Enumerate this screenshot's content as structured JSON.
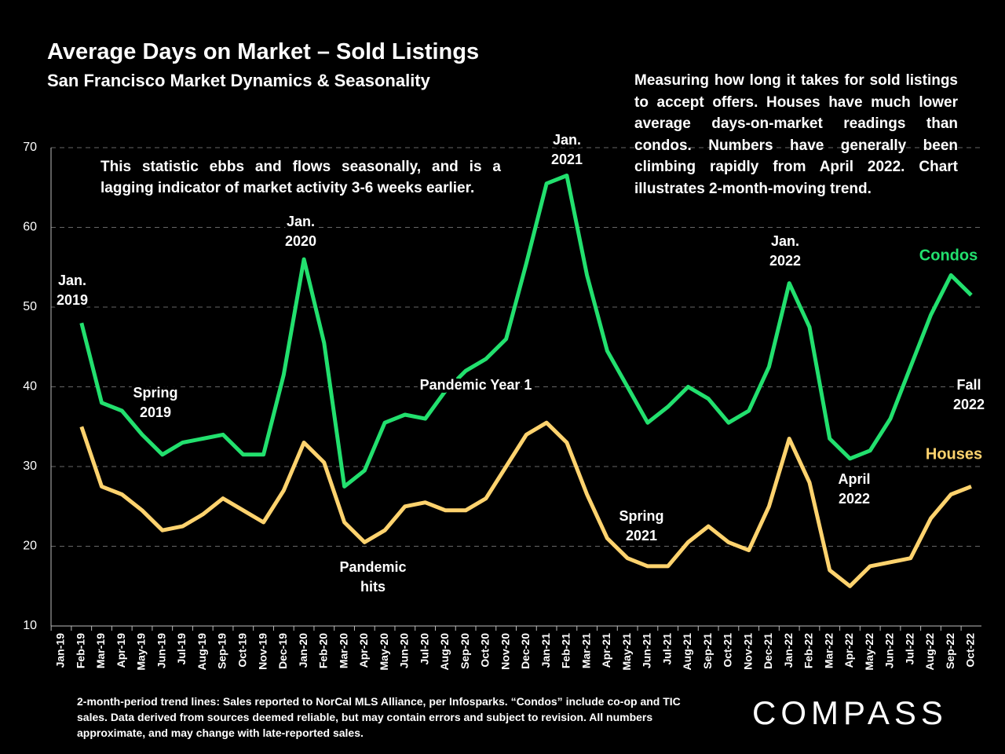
{
  "chart_data": {
    "type": "line",
    "title": "Average Days on Market – Sold Listings",
    "subtitle": "San Francisco Market Dynamics & Seasonality",
    "description": "Measuring how long it takes for sold listings to accept offers. Houses have much lower average days-on-market readings than condos. Numbers have generally been climbing rapidly from April 2022. Chart illustrates 2-month-moving trend.",
    "note": "This statistic ebbs and flows seasonally, and is a lagging indicator of market activity 3-6 weeks earlier.",
    "footnote": "2-month-period trend lines: Sales reported to NorCal MLS Alliance, per Infosparks. “Condos” include co-op and TIC sales. Data derived from sources deemed reliable, but may contain errors and subject to revision. All numbers approximate, and may change with late-reported sales.",
    "logo": "COMPASS",
    "categories": [
      "Jan-19",
      "Feb-19",
      "Mar-19",
      "Apr-19",
      "May-19",
      "Jun-19",
      "Jul-19",
      "Aug-19",
      "Sep-19",
      "Oct-19",
      "Nov-19",
      "Dec-19",
      "Jan-20",
      "Feb-20",
      "Mar-20",
      "Apr-20",
      "May-20",
      "Jun-20",
      "Jul-20",
      "Aug-20",
      "Sep-20",
      "Oct-20",
      "Nov-20",
      "Dec-20",
      "Jan-21",
      "Feb-21",
      "Mar-21",
      "Apr-21",
      "May-21",
      "Jun-21",
      "Jul-21",
      "Aug-21",
      "Sep-21",
      "Oct-21",
      "Nov-21",
      "Dec-21",
      "Jan-22",
      "Feb-22",
      "Mar-22",
      "Apr-22",
      "May-22",
      "Jun-22",
      "Jul-22",
      "Aug-22",
      "Sep-22",
      "Oct-22"
    ],
    "series": [
      {
        "name": "Condos",
        "color": "#22e06e",
        "values": [
          null,
          48,
          38,
          37,
          34,
          31.5,
          33,
          33.5,
          34,
          31.5,
          31.5,
          41.5,
          56,
          45.5,
          27.5,
          29.5,
          35.5,
          36.5,
          36,
          39.5,
          42,
          43.5,
          46,
          55.5,
          65.5,
          66.5,
          54,
          44.5,
          40,
          35.5,
          37.5,
          40,
          38.5,
          35.5,
          37,
          42.5,
          53,
          47.5,
          33.5,
          31,
          32,
          36,
          42.5,
          49,
          54,
          51.5
        ]
      },
      {
        "name": "Houses",
        "color": "#ffd36e",
        "values": [
          null,
          35,
          27.5,
          26.5,
          24.5,
          22,
          22.5,
          24,
          26,
          24.5,
          23,
          27,
          33,
          30.5,
          23,
          20.5,
          22,
          25,
          25.5,
          24.5,
          24.5,
          26,
          30,
          34,
          35.5,
          33,
          26.5,
          21,
          18.5,
          17.5,
          17.5,
          20.5,
          22.5,
          20.5,
          19.5,
          25,
          33.5,
          28,
          17,
          15,
          17.5,
          18,
          18.5,
          23.5,
          26.5,
          27.5
        ]
      }
    ],
    "annotations": [
      {
        "lines": [
          "Jan.",
          "2019"
        ]
      },
      {
        "lines": [
          "Spring",
          "2019"
        ]
      },
      {
        "lines": [
          "Jan.",
          "2020"
        ]
      },
      {
        "lines": [
          "Pandemic",
          "hits"
        ]
      },
      {
        "lines": [
          "Pandemic Year 1"
        ]
      },
      {
        "lines": [
          "Jan.",
          "2021"
        ]
      },
      {
        "lines": [
          "Spring",
          "2021"
        ]
      },
      {
        "lines": [
          "Jan.",
          "2022"
        ]
      },
      {
        "lines": [
          "April",
          "2022"
        ]
      },
      {
        "lines": [
          "Fall",
          "2022"
        ]
      }
    ],
    "ylim": [
      10,
      70
    ],
    "yticks": [
      10,
      20,
      30,
      40,
      50,
      60,
      70
    ],
    "grid": true
  }
}
